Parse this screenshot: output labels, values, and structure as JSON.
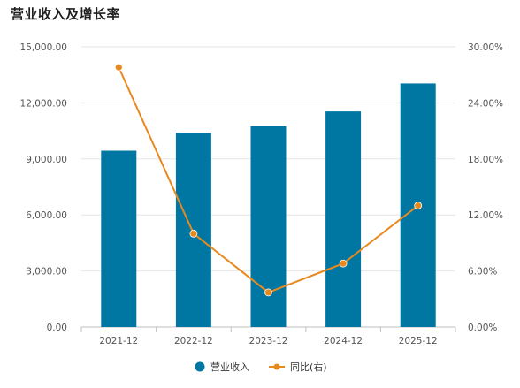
{
  "chart_data": {
    "type": "bar",
    "title": "营业收入及增长率",
    "categories": [
      "2021-12",
      "2022-12",
      "2023-12",
      "2024-12",
      "2025-12"
    ],
    "series": [
      {
        "name": "营业收入",
        "type": "bar",
        "axis": "left",
        "color": "#0077a3",
        "values": [
          9440,
          10400,
          10760,
          11540,
          13040
        ]
      },
      {
        "name": "同比(右)",
        "type": "line",
        "axis": "right",
        "color": "#e8891e",
        "values": [
          27.8,
          10.0,
          3.7,
          6.8,
          13.0
        ]
      }
    ],
    "y_left": {
      "min": 0,
      "max": 15000,
      "ticks": [
        0,
        3000,
        6000,
        9000,
        12000,
        15000
      ],
      "tick_labels": [
        "0.00",
        "3,000.00",
        "6,000.00",
        "9,000.00",
        "12,000.00",
        "15,000.00"
      ]
    },
    "y_right": {
      "min": 0,
      "max": 30,
      "ticks": [
        0,
        6,
        12,
        18,
        24,
        30
      ],
      "tick_labels": [
        "0.00%",
        "6.00%",
        "12.00%",
        "18.00%",
        "24.00%",
        "30.00%"
      ]
    },
    "grid": true,
    "legend": "bottom-center"
  }
}
